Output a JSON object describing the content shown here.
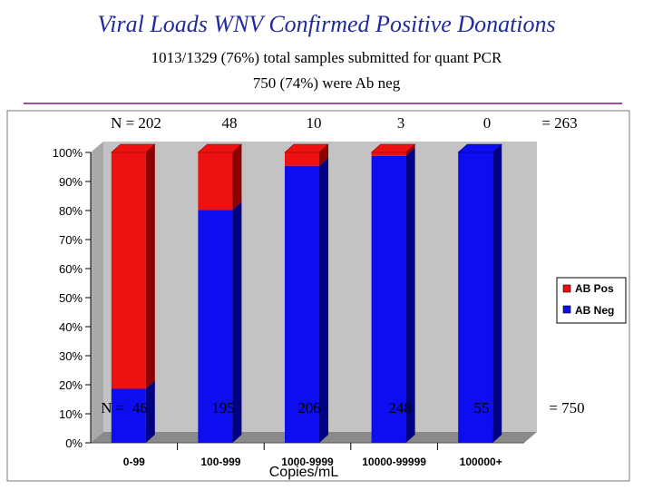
{
  "header": {
    "title": "Viral Loads WNV Confirmed Positive Donations",
    "subtitle_line1": "1013/1329 (76%) total samples submitted for quant PCR",
    "subtitle_line2": "750 (74%) were Ab neg"
  },
  "annotations": {
    "top_counts": [
      "N = 202",
      "48",
      "10",
      "3",
      "0"
    ],
    "top_total": "= 263",
    "bottom_counts": [
      "N =  46",
      "195",
      "206",
      "248",
      "55"
    ],
    "bottom_total": "= 750"
  },
  "colors": {
    "ab_pos": "#ee1111",
    "ab_pos_dark": "#8c0000",
    "ab_neg": "#0d0df0",
    "ab_neg_dark": "#000080",
    "panel_bg": "#c3c3c3",
    "floor": "#8a8a8a",
    "title": "#1f2a9c"
  },
  "chart_data": {
    "type": "bar",
    "stacked": true,
    "categories": [
      "0-99",
      "100-999",
      "1000-9999",
      "10000-99999",
      "100000+"
    ],
    "series": [
      {
        "name": "AB Neg",
        "values": [
          18.6,
          80.2,
          95.4,
          98.8,
          100
        ]
      },
      {
        "name": "AB Pos",
        "values": [
          81.4,
          19.8,
          4.6,
          1.2,
          0
        ]
      }
    ],
    "xlabel": "Copies/mL",
    "ylabel": "",
    "ylim": [
      0,
      100
    ],
    "y_ticks": [
      "0%",
      "10%",
      "20%",
      "30%",
      "40%",
      "50%",
      "60%",
      "70%",
      "80%",
      "90%",
      "100%"
    ],
    "legend_position": "right",
    "grid": false
  }
}
